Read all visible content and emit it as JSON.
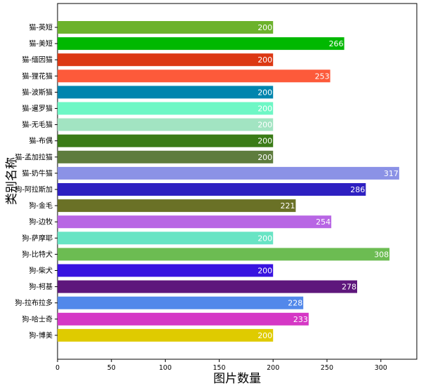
{
  "chart_data": {
    "type": "bar",
    "orientation": "horizontal",
    "xlabel": "图片数量",
    "ylabel": "类别名称",
    "xlim": [
      0,
      330
    ],
    "xticks": [
      0,
      50,
      100,
      150,
      200,
      250,
      300
    ],
    "grid": false,
    "categories": [
      "猫-英短",
      "猫-美短",
      "猫-缅因猫",
      "猫-狸花猫",
      "猫-波斯猫",
      "猫-暹罗猫",
      "猫-无毛猫",
      "猫-布偶",
      "猫-孟加拉猫",
      "猫-奶牛猫",
      "狗-阿拉斯加",
      "狗-金毛",
      "狗-边牧",
      "狗-萨摩耶",
      "狗-比特犬",
      "狗-柴犬",
      "狗-柯基",
      "狗-拉布拉多",
      "狗-哈士奇",
      "狗-博美"
    ],
    "values": [
      200,
      266,
      200,
      253,
      200,
      200,
      200,
      200,
      200,
      317,
      286,
      221,
      254,
      200,
      308,
      200,
      278,
      228,
      233,
      200
    ],
    "colors": [
      "#6cb22c",
      "#00b800",
      "#dc3813",
      "#fd5a3a",
      "#0085ae",
      "#6ef7c5",
      "#a2e4c2",
      "#3a7b17",
      "#5e7c3d",
      "#8b92e6",
      "#2e20c1",
      "#6a7126",
      "#b866e4",
      "#68e4c4",
      "#6cbc52",
      "#3813e0",
      "#5e177c",
      "#5288ea",
      "#d538c5",
      "#dfcb00"
    ]
  }
}
